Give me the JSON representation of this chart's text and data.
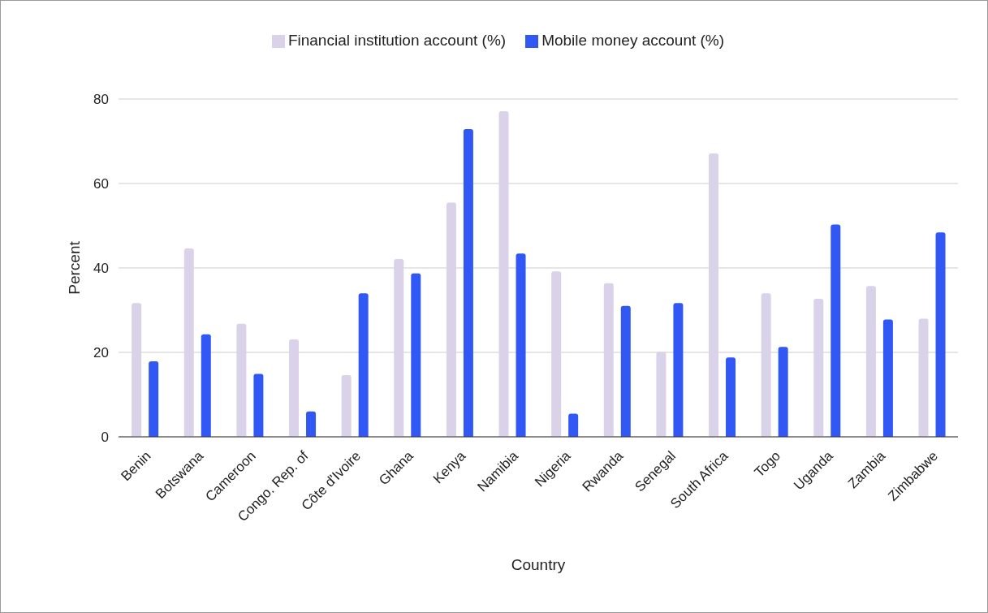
{
  "chart_data": {
    "type": "bar",
    "xlabel": "Country",
    "ylabel": "Percent",
    "categories": [
      "Benin",
      "Botswana",
      "Cameroon",
      "Congo. Rep. of",
      "Côte d'Ivoire",
      "Ghana",
      "Kenya",
      "Namibia",
      "Nigeria",
      "Rwanda",
      "Senegal",
      "South Africa",
      "Togo",
      "Uganda",
      "Zambia",
      "Zimbabwe"
    ],
    "series": [
      {
        "name": "Financial institution account (%)",
        "color": "#d9d2e9",
        "values": [
          31.7,
          44.6,
          26.8,
          23.1,
          14.6,
          42.1,
          55.5,
          77.1,
          39.2,
          36.4,
          20.1,
          67.1,
          34.0,
          32.7,
          35.7,
          28.0
        ]
      },
      {
        "name": "Mobile money account (%)",
        "color": "#3158f4",
        "values": [
          17.9,
          24.3,
          14.9,
          6.0,
          34.0,
          38.7,
          72.9,
          43.4,
          5.5,
          31.0,
          31.7,
          18.8,
          21.3,
          50.3,
          27.8,
          48.4
        ]
      }
    ],
    "ylim": [
      0,
      80
    ],
    "yticks": [
      0,
      20,
      40,
      60,
      80
    ],
    "grid": "y",
    "legend": "top"
  }
}
